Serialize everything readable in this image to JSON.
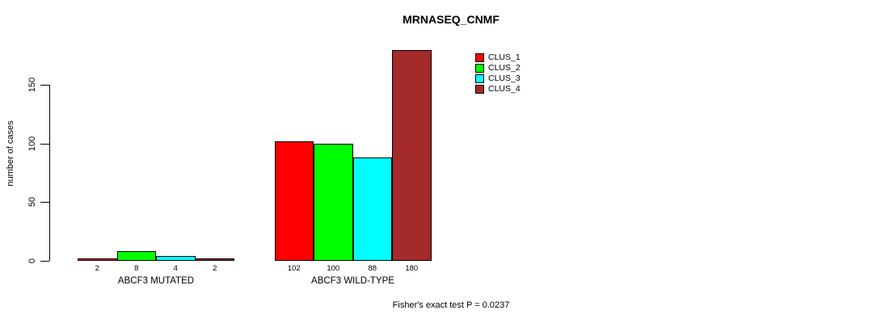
{
  "title": "MRNASEQ_CNMF",
  "footer": "Fisher's exact test P = 0.0237",
  "chart_data": {
    "type": "bar",
    "title": "MRNASEQ_CNMF",
    "xlabel": "",
    "ylabel": "number of cases",
    "ylim": [
      0,
      180
    ],
    "yticks": [
      0,
      50,
      100,
      150
    ],
    "grid": false,
    "legend_position": "top-right",
    "bar_value_labels": true,
    "categories": [
      "ABCF3 MUTATED",
      "ABCF3 WILD-TYPE"
    ],
    "series": [
      {
        "name": "CLUS_1",
        "color": "#ff0000",
        "values": [
          2,
          102
        ]
      },
      {
        "name": "CLUS_2",
        "color": "#00ff00",
        "values": [
          8,
          100
        ]
      },
      {
        "name": "CLUS_3",
        "color": "#00ffff",
        "values": [
          4,
          88
        ]
      },
      {
        "name": "CLUS_4",
        "color": "#a52a2a",
        "values": [
          2,
          180
        ]
      }
    ],
    "groups": [
      {
        "label": "ABCF3 MUTATED",
        "values": [
          2,
          8,
          4,
          2
        ]
      },
      {
        "label": "ABCF3 WILD-TYPE",
        "values": [
          102,
          100,
          88,
          180
        ]
      }
    ],
    "annotation": "Fisher's exact test P = 0.0237"
  },
  "colors": {
    "axis": "#000000",
    "text": "#000000",
    "background": "#ffffff"
  }
}
